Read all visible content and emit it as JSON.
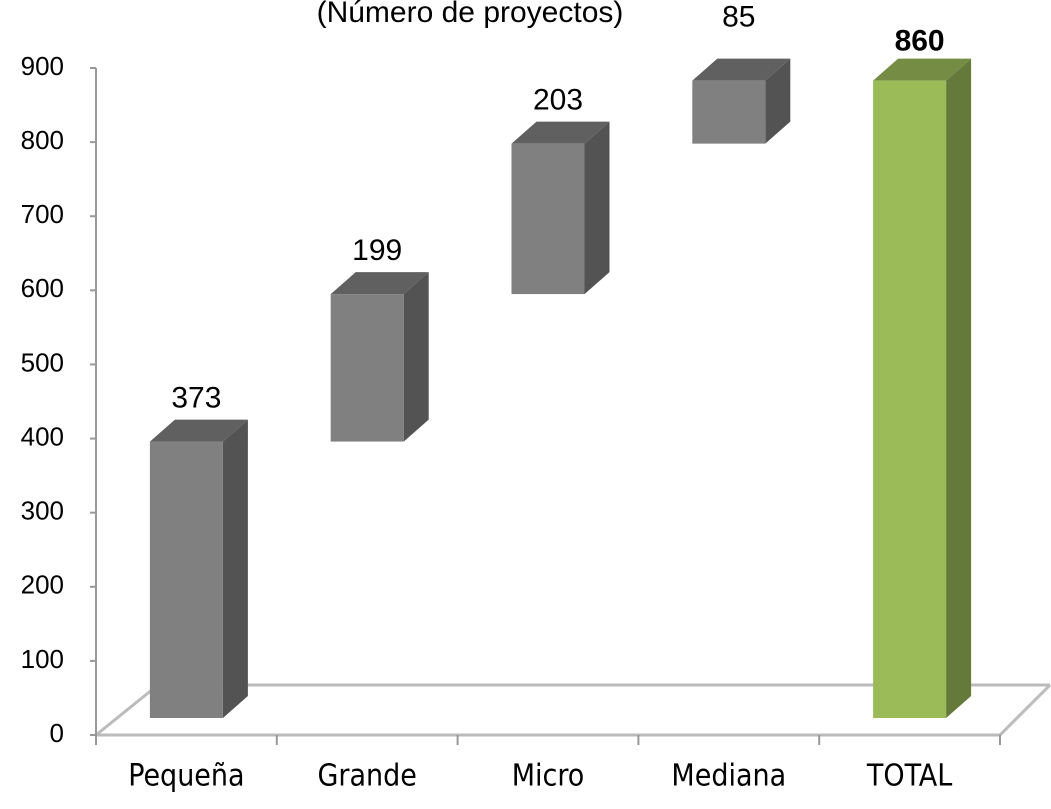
{
  "chart_data": {
    "type": "waterfall",
    "title": "(Número de proyectos)",
    "categories": [
      "Pequeña",
      "Grande",
      "Micro",
      "Mediana",
      "TOTAL"
    ],
    "values": [
      373,
      199,
      203,
      85,
      860
    ],
    "is_total": [
      false,
      false,
      false,
      false,
      true
    ],
    "colors": [
      "#808080",
      "#808080",
      "#808080",
      "#808080",
      "#9bbb59"
    ],
    "ylim": [
      0,
      900
    ],
    "yticks": [
      0,
      100,
      200,
      300,
      400,
      500,
      600,
      700,
      800,
      900
    ],
    "grid": false
  }
}
